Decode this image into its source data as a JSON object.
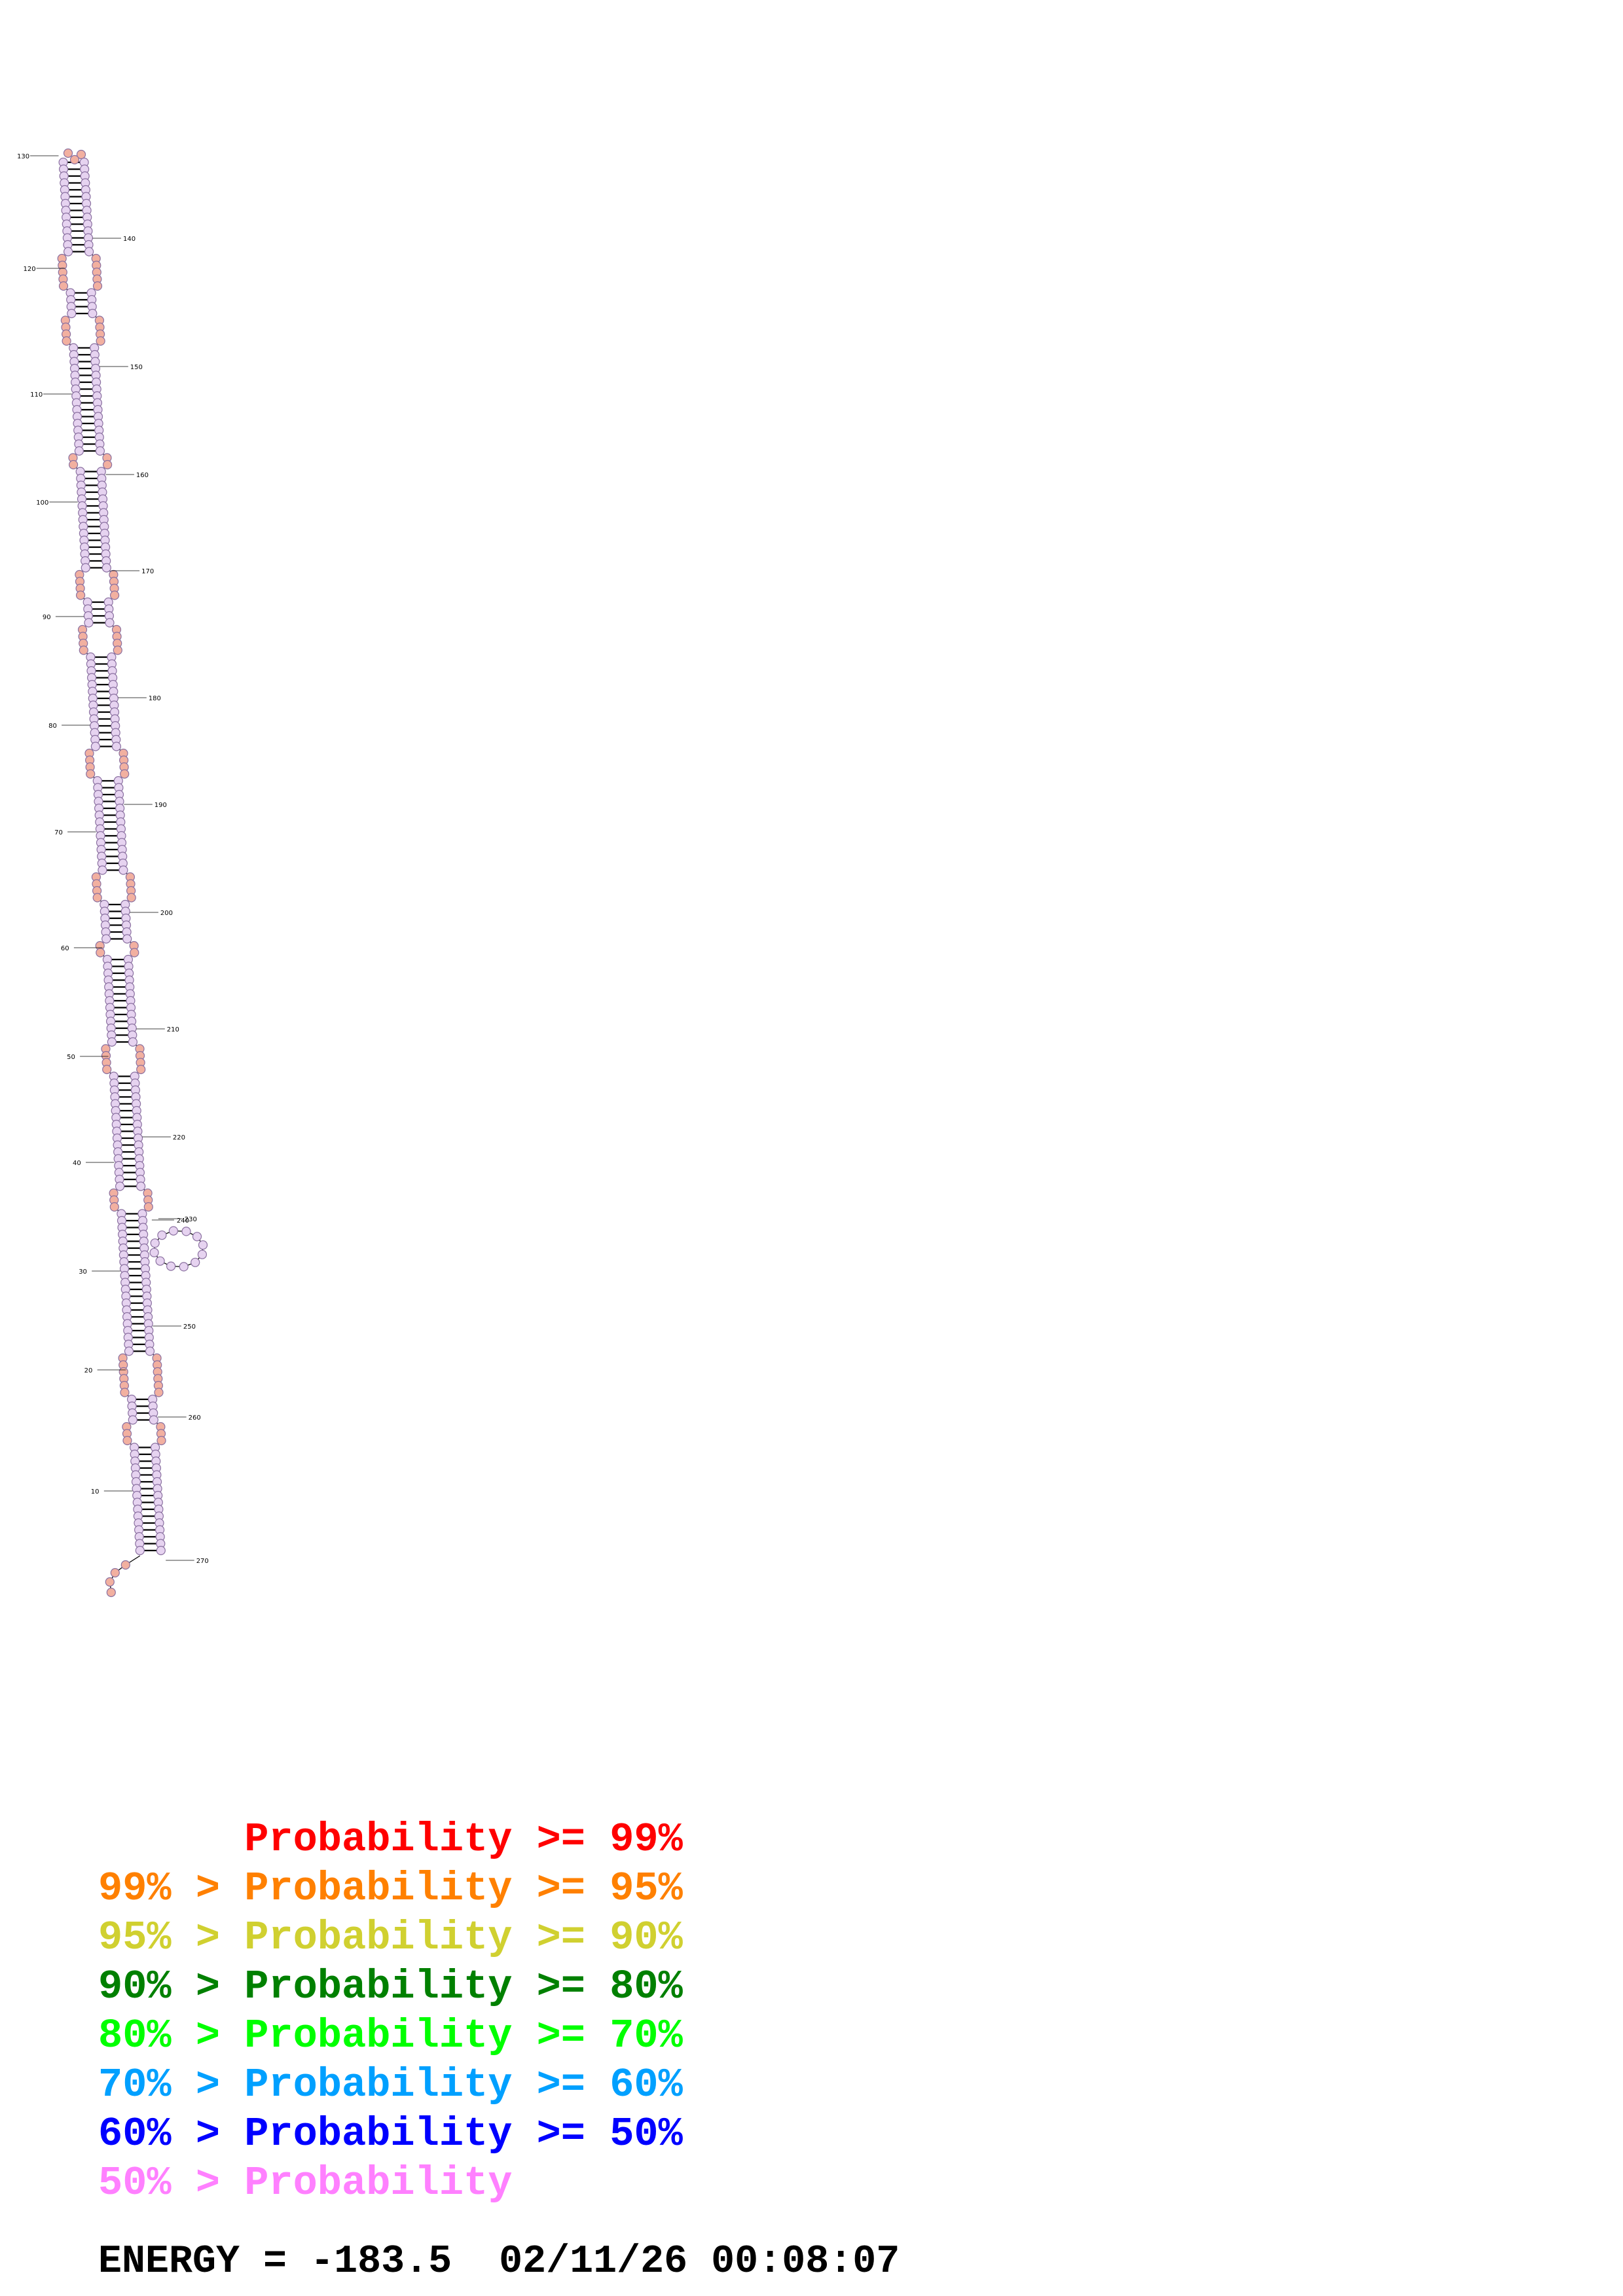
{
  "structure": {
    "position_labels": [
      "10",
      "20",
      "30",
      "40",
      "50",
      "60",
      "70",
      "80",
      "90",
      "100",
      "110",
      "120",
      "130",
      "140",
      "150",
      "160",
      "170",
      "180",
      "190",
      "200",
      "210",
      "220",
      "230",
      "240",
      "250",
      "260",
      "270"
    ],
    "colors": {
      "base_fill_low": "#e6d3f0",
      "base_fill_high": "#f2b0a0",
      "base_outline": "#8a70a0",
      "bond": "#000000",
      "backbone": "#000000"
    }
  },
  "legend": [
    {
      "prefix": "",
      "label": "Probability",
      "op": ">=",
      "value": "99%",
      "color": "#ff0000"
    },
    {
      "prefix": "99% >",
      "label": "Probability",
      "op": ">=",
      "value": "95%",
      "color": "#ff8000"
    },
    {
      "prefix": "95% >",
      "label": "Probability",
      "op": ">=",
      "value": "90%",
      "color": "#d0d030"
    },
    {
      "prefix": "90% >",
      "label": "Probability",
      "op": ">=",
      "value": "80%",
      "color": "#008000"
    },
    {
      "prefix": "80% >",
      "label": "Probability",
      "op": ">=",
      "value": "70%",
      "color": "#00ff00"
    },
    {
      "prefix": "70% >",
      "label": "Probability",
      "op": ">=",
      "value": "60%",
      "color": "#00a0ff"
    },
    {
      "prefix": "60% >",
      "label": "Probability",
      "op": ">=",
      "value": "50%",
      "color": "#0000ff"
    },
    {
      "prefix": "50% >",
      "label": "Probability",
      "op": "",
      "value": "",
      "color": "#ff80ff"
    }
  ],
  "footer": {
    "energy_label": "ENERGY = ",
    "energy_value": "-183.5",
    "timestamp": "02/11/26 00:08:07"
  }
}
